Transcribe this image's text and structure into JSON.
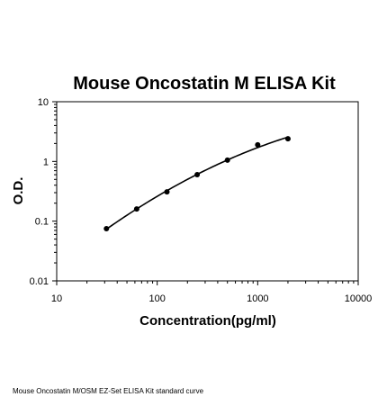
{
  "chart_data": {
    "type": "scatter",
    "title": "Mouse Oncostatin M ELISA Kit",
    "xlabel": "Concentration(pg/ml)",
    "ylabel": "O.D.",
    "x_scale": "log",
    "y_scale": "log",
    "xlim": [
      10,
      10000
    ],
    "ylim": [
      0.01,
      10
    ],
    "x_ticks": [
      "10",
      "100",
      "1000",
      "10000"
    ],
    "y_ticks": [
      "0.01",
      "0.1",
      "1",
      "10"
    ],
    "grid": false,
    "legend": "none",
    "series": [
      {
        "x": [
          31.25,
          62.5,
          125,
          250,
          500,
          1000,
          2000
        ],
        "y": [
          0.075,
          0.16,
          0.31,
          0.6,
          1.05,
          1.9,
          2.4
        ]
      }
    ],
    "fit_curve": true
  },
  "caption": "Mouse Oncostatin M/OSM EZ-Set ELISA Kit standard curve"
}
